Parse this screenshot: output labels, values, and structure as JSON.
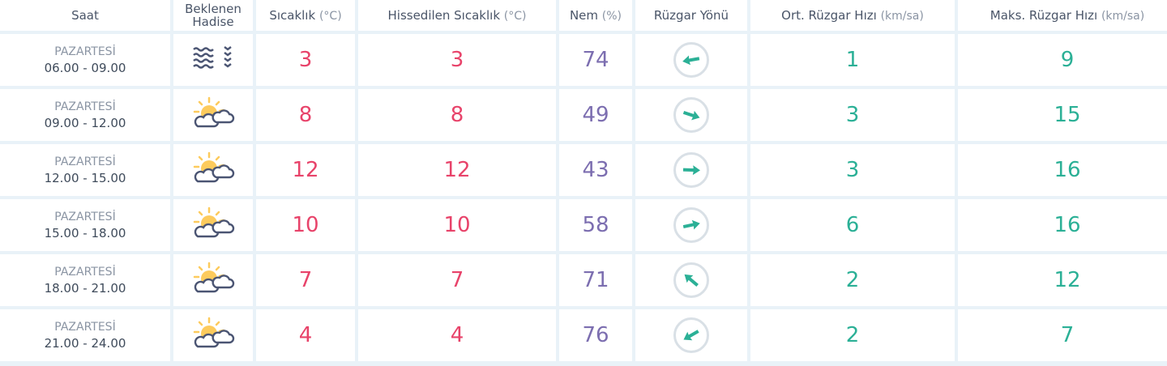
{
  "colors": {
    "temperature": "#e8436a",
    "humidity": "#7c6eb0",
    "wind": "#2bb096",
    "icon_outline": "#4b5573",
    "sun": "#fdcb5d"
  },
  "headers": {
    "saat": "Saat",
    "hadise": "Beklenen Hadise",
    "sicaklik": "Sıcaklık",
    "sicaklik_unit": "(°C)",
    "hissedilen": "Hissedilen Sıcaklık",
    "hissedilen_unit": "(°C)",
    "nem": "Nem",
    "nem_unit": "(%)",
    "ruzgar_yonu": "Rüzgar Yönü",
    "ort_ruzgar": "Ort. Rüzgar Hızı",
    "ort_unit": "(km/sa)",
    "maks_ruzgar": "Maks. Rüzgar Hızı",
    "maks_unit": "(km/sa)"
  },
  "rows": [
    {
      "day": "PAZARTESİ",
      "time": "06.00 - 09.00",
      "icon": "fog-icon",
      "temp": "3",
      "feels": "3",
      "humidity": "74",
      "arrow_rotation_deg": 170,
      "avg_wind": "1",
      "max_wind": "9"
    },
    {
      "day": "PAZARTESİ",
      "time": "09.00 - 12.00",
      "icon": "partly-cloudy-icon",
      "temp": "8",
      "feels": "8",
      "humidity": "49",
      "arrow_rotation_deg": 18,
      "avg_wind": "3",
      "max_wind": "15"
    },
    {
      "day": "PAZARTESİ",
      "time": "12.00 - 15.00",
      "icon": "partly-cloudy-icon",
      "temp": "12",
      "feels": "12",
      "humidity": "43",
      "arrow_rotation_deg": 2,
      "avg_wind": "3",
      "max_wind": "16"
    },
    {
      "day": "PAZARTESİ",
      "time": "15.00 - 18.00",
      "icon": "partly-cloudy-icon",
      "temp": "10",
      "feels": "10",
      "humidity": "58",
      "arrow_rotation_deg": -12,
      "avg_wind": "6",
      "max_wind": "16"
    },
    {
      "day": "PAZARTESİ",
      "time": "18.00 - 21.00",
      "icon": "partly-cloudy-icon",
      "temp": "7",
      "feels": "7",
      "humidity": "71",
      "arrow_rotation_deg": 220,
      "avg_wind": "2",
      "max_wind": "12"
    },
    {
      "day": "PAZARTESİ",
      "time": "21.00 - 24.00",
      "icon": "partly-cloudy-icon",
      "temp": "4",
      "feels": "4",
      "humidity": "76",
      "arrow_rotation_deg": 150,
      "avg_wind": "2",
      "max_wind": "7"
    }
  ]
}
